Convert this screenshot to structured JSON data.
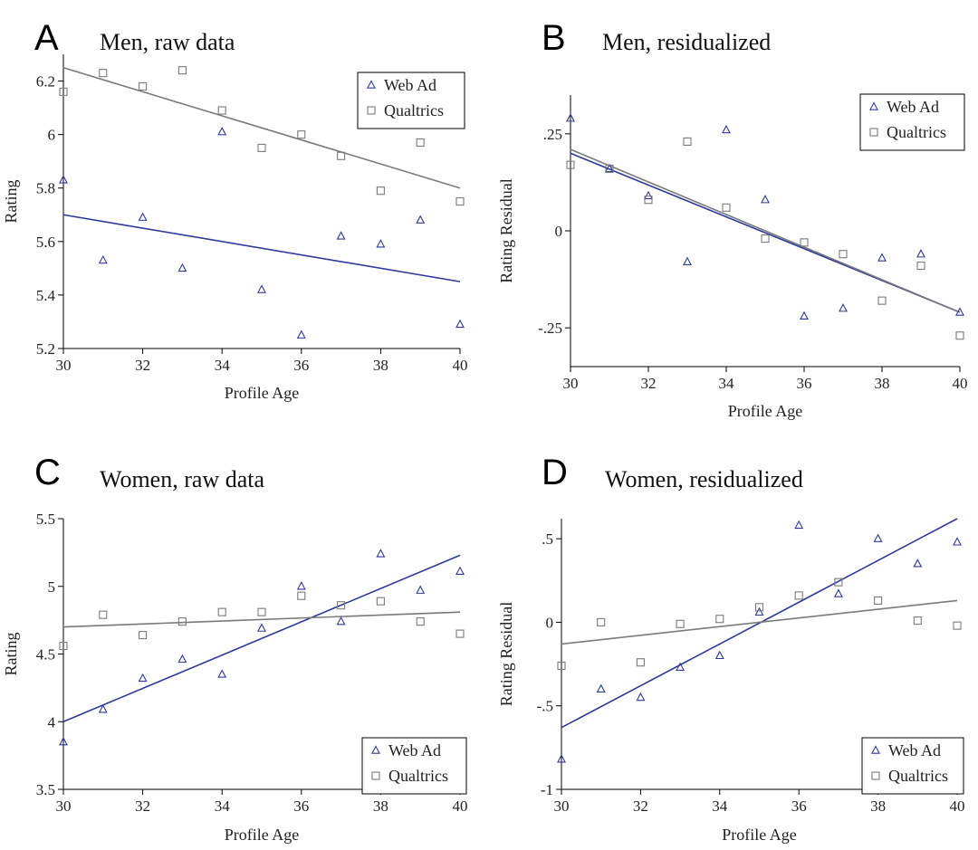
{
  "colors": {
    "web_ad": "#2b3a9b",
    "qualtrics": "#7a7a7a",
    "axis": "#000000"
  },
  "chart_data": [
    {
      "type": "scatter",
      "panel_letter": "A",
      "title": "Men, raw data",
      "xlabel": "Profile Age",
      "ylabel": "Rating",
      "xlim": [
        30,
        40
      ],
      "ylim": [
        5.2,
        6.3
      ],
      "x_ticks": [
        30,
        32,
        34,
        36,
        38,
        40
      ],
      "x_tick_labels": [
        "30",
        "32",
        "34",
        "36",
        "38",
        "40"
      ],
      "y_ticks": [
        5.2,
        5.4,
        5.6,
        5.8,
        6.0,
        6.2
      ],
      "y_tick_labels": [
        "5.2",
        "5.4",
        "5.6",
        "5.8",
        "6",
        "6.2"
      ],
      "legend_position": "top-right",
      "series": [
        {
          "name": "Web Ad",
          "marker": "triangle",
          "color": "#2b3a9b",
          "x": [
            30,
            31,
            32,
            33,
            34,
            35,
            36,
            37,
            38,
            39,
            40
          ],
          "y": [
            5.83,
            5.53,
            5.69,
            5.5,
            6.01,
            5.42,
            5.25,
            5.62,
            5.59,
            5.68,
            5.29
          ],
          "fit": [
            5.7,
            5.45
          ]
        },
        {
          "name": "Qualtrics",
          "marker": "square",
          "color": "#7a7a7a",
          "x": [
            30,
            31,
            32,
            33,
            34,
            35,
            36,
            37,
            38,
            39,
            40
          ],
          "y": [
            6.16,
            6.23,
            6.18,
            6.24,
            6.09,
            5.95,
            6.0,
            5.92,
            5.79,
            5.97,
            5.75
          ],
          "fit": [
            6.25,
            5.8
          ]
        }
      ]
    },
    {
      "type": "scatter",
      "panel_letter": "B",
      "title": "Men, residualized",
      "xlabel": "Profile Age",
      "ylabel": "Rating Residual",
      "xlim": [
        30,
        40
      ],
      "ylim": [
        -0.35,
        0.35
      ],
      "x_ticks": [
        30,
        32,
        34,
        36,
        38,
        40
      ],
      "x_tick_labels": [
        "30",
        "32",
        "34",
        "36",
        "38",
        "40"
      ],
      "y_ticks": [
        -0.25,
        0,
        0.25
      ],
      "y_tick_labels": [
        "-.25",
        "0",
        ".25"
      ],
      "legend_position": "top-right",
      "series": [
        {
          "name": "Web Ad",
          "marker": "triangle",
          "color": "#2b3a9b",
          "x": [
            30,
            31,
            32,
            33,
            34,
            35,
            36,
            37,
            38,
            39,
            40
          ],
          "y": [
            0.29,
            0.16,
            0.09,
            -0.08,
            0.26,
            0.08,
            -0.22,
            -0.2,
            -0.07,
            -0.06,
            -0.21
          ],
          "fit": [
            0.2,
            -0.21
          ]
        },
        {
          "name": "Qualtrics",
          "marker": "square",
          "color": "#7a7a7a",
          "x": [
            30,
            31,
            32,
            33,
            34,
            35,
            36,
            37,
            38,
            39,
            40
          ],
          "y": [
            0.17,
            0.16,
            0.08,
            0.23,
            0.06,
            -0.02,
            -0.03,
            -0.06,
            -0.18,
            -0.09,
            -0.27
          ],
          "fit": [
            0.21,
            -0.21
          ]
        }
      ]
    },
    {
      "type": "scatter",
      "panel_letter": "C",
      "title": "Women, raw data",
      "xlabel": "Profile Age",
      "ylabel": "Rating",
      "xlim": [
        30,
        40
      ],
      "ylim": [
        3.5,
        5.5
      ],
      "x_ticks": [
        30,
        32,
        34,
        36,
        38,
        40
      ],
      "x_tick_labels": [
        "30",
        "32",
        "34",
        "36",
        "38",
        "40"
      ],
      "y_ticks": [
        3.5,
        4,
        4.5,
        5,
        5.5
      ],
      "y_tick_labels": [
        "3.5",
        "4",
        "4.5",
        "5",
        "5.5"
      ],
      "legend_position": "bottom-right",
      "series": [
        {
          "name": "Web Ad",
          "marker": "triangle",
          "color": "#2b3a9b",
          "x": [
            30,
            31,
            32,
            33,
            34,
            35,
            36,
            37,
            38,
            39,
            40
          ],
          "y": [
            3.85,
            4.09,
            4.32,
            4.46,
            4.35,
            4.69,
            5.0,
            4.74,
            5.24,
            4.97,
            5.11
          ],
          "fit": [
            4.0,
            5.23
          ]
        },
        {
          "name": "Qualtrics",
          "marker": "square",
          "color": "#7a7a7a",
          "x": [
            30,
            31,
            32,
            33,
            34,
            35,
            36,
            37,
            38,
            39,
            40
          ],
          "y": [
            4.56,
            4.79,
            4.64,
            4.74,
            4.81,
            4.81,
            4.93,
            4.86,
            4.89,
            4.74,
            4.65
          ],
          "fit": [
            4.7,
            4.81
          ]
        }
      ]
    },
    {
      "type": "scatter",
      "panel_letter": "D",
      "title": "Women, residualized",
      "xlabel": "Profile Age",
      "ylabel": "Rating Residual",
      "xlim": [
        30,
        40
      ],
      "ylim": [
        -1.0,
        0.62
      ],
      "x_ticks": [
        30,
        32,
        34,
        36,
        38,
        40
      ],
      "x_tick_labels": [
        "30",
        "32",
        "34",
        "36",
        "38",
        "40"
      ],
      "y_ticks": [
        -1,
        -0.5,
        0,
        0.5
      ],
      "y_tick_labels": [
        "-1",
        "-.5",
        "0",
        ".5"
      ],
      "legend_position": "bottom-right",
      "series": [
        {
          "name": "Web Ad",
          "marker": "triangle",
          "color": "#2b3a9b",
          "x": [
            30,
            31,
            32,
            33,
            34,
            35,
            36,
            37,
            38,
            39,
            40
          ],
          "y": [
            -0.82,
            -0.4,
            -0.45,
            -0.27,
            -0.2,
            0.06,
            0.58,
            0.17,
            0.5,
            0.35,
            0.48
          ],
          "fit": [
            -0.63,
            0.62
          ]
        },
        {
          "name": "Qualtrics",
          "marker": "square",
          "color": "#7a7a7a",
          "x": [
            30,
            31,
            32,
            33,
            34,
            35,
            36,
            37,
            38,
            39,
            40
          ],
          "y": [
            -0.26,
            0.0,
            -0.24,
            -0.01,
            0.02,
            0.09,
            0.16,
            0.24,
            0.13,
            0.01,
            -0.02
          ],
          "fit": [
            -0.13,
            0.13
          ]
        }
      ]
    }
  ]
}
